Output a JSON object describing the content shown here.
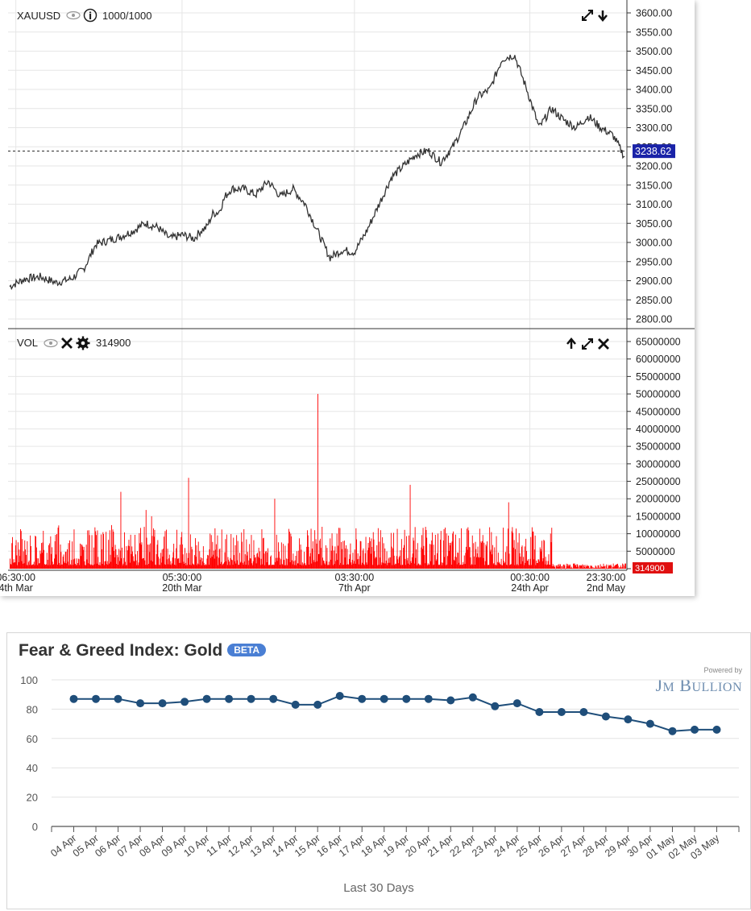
{
  "price_chart": {
    "symbol": "XAUUSD",
    "bars_label": "1000/1000",
    "last_price_label": "3238.62",
    "colors": {
      "line": "#333333",
      "price_tag": "#1a23a8",
      "volume": "#ff0000",
      "volume_tag": "#e01010"
    }
  },
  "volume_chart": {
    "label": "VOL",
    "value": "314900",
    "volume_tag": "314900"
  },
  "fear_greed": {
    "title": "Fear & Greed Index: Gold",
    "badge": "BETA",
    "powered_by": "Powered by",
    "brand": "JM BULLION",
    "x_title": "Last 30 Days",
    "colors": {
      "line": "#1f4e7a",
      "point": "#1f4e7a",
      "grid": "#e3e3e3",
      "badge": "#4a7fd4"
    }
  },
  "chart_data": [
    {
      "type": "line",
      "series": [
        {
          "name": "XAUUSD",
          "x_index": [
            0,
            25,
            50,
            75,
            100,
            120,
            140,
            160,
            180,
            200,
            220,
            240,
            260,
            280,
            300,
            310,
            320,
            330,
            340,
            350,
            360,
            380,
            400,
            420,
            440,
            460,
            480,
            500,
            520,
            540,
            560,
            580,
            600,
            620,
            640,
            660,
            680,
            700,
            720,
            740,
            760,
            780,
            800,
            820,
            840,
            860,
            880,
            900,
            920,
            940,
            960,
            980,
            1000
          ],
          "values": [
            2885,
            2905,
            2910,
            2895,
            2905,
            2930,
            2995,
            3005,
            3015,
            3030,
            3050,
            3040,
            3010,
            3020,
            3010,
            3030,
            3040,
            3075,
            3080,
            3120,
            3140,
            3140,
            3125,
            3160,
            3120,
            3140,
            3100,
            3030,
            2960,
            2980,
            2975,
            3030,
            3100,
            3170,
            3200,
            3230,
            3240,
            3210,
            3250,
            3310,
            3380,
            3400,
            3480,
            3490,
            3400,
            3300,
            3350,
            3320,
            3300,
            3330,
            3300,
            3280,
            3220
          ]
        }
      ],
      "y_ticks": [
        "2800.00",
        "2850.00",
        "2900.00",
        "2950.00",
        "3000.00",
        "3050.00",
        "3100.00",
        "3150.00",
        "3200.00",
        "3250.00",
        "3300.00",
        "3350.00",
        "3400.00",
        "3450.00",
        "3500.00",
        "3550.00",
        "3600.00"
      ],
      "ylim": [
        2800,
        3600
      ],
      "x_tick_labels": [
        {
          "time": "06:30:00",
          "date": "4th Mar"
        },
        {
          "time": "05:30:00",
          "date": "20th Mar"
        },
        {
          "time": "03:30:00",
          "date": "7th Apr"
        },
        {
          "time": "00:30:00",
          "date": "24th Apr"
        },
        {
          "time": "23:30:00",
          "date": "2nd May"
        }
      ],
      "last_value": 3238.62
    },
    {
      "type": "bar",
      "series": [
        {
          "name": "VOL"
        }
      ],
      "spikes": [
        {
          "x_index": 500,
          "value": 50000000
        },
        {
          "x_index": 290,
          "value": 26000000
        },
        {
          "x_index": 650,
          "value": 24000000
        },
        {
          "x_index": 180,
          "value": 22000000
        },
        {
          "x_index": 810,
          "value": 19000000
        },
        {
          "x_index": 430,
          "value": 20000000
        }
      ],
      "baseline_range": [
        1000000,
        12000000
      ],
      "tail_after_index": 880,
      "tail_range": [
        0,
        1500000
      ],
      "y_ticks": [
        "0",
        "5000000",
        "10000000",
        "15000000",
        "20000000",
        "25000000",
        "30000000",
        "35000000",
        "40000000",
        "45000000",
        "50000000",
        "55000000",
        "60000000",
        "65000000"
      ],
      "ylim": [
        0,
        65000000
      ],
      "last_value": 314900
    },
    {
      "type": "line",
      "title": "Fear & Greed Index: Gold",
      "xlabel": "Last 30 Days",
      "categories": [
        "04 Apr",
        "05 Apr",
        "06 Apr",
        "07 Apr",
        "08 Apr",
        "09 Apr",
        "10 Apr",
        "11 Apr",
        "12 Apr",
        "13 Apr",
        "14 Apr",
        "15 Apr",
        "16 Apr",
        "17 Apr",
        "18 Apr",
        "19 Apr",
        "20 Apr",
        "21 Apr",
        "22 Apr",
        "23 Apr",
        "24 Apr",
        "25 Apr",
        "26 Apr",
        "27 Apr",
        "28 Apr",
        "29 Apr",
        "30 Apr",
        "01 May",
        "02 May",
        "03 May"
      ],
      "series": [
        {
          "values": [
            87,
            87,
            87,
            84,
            84,
            85,
            87,
            87,
            87,
            87,
            83,
            83,
            89,
            87,
            87,
            87,
            87,
            86,
            88,
            82,
            84,
            78,
            78,
            78,
            75,
            73,
            70,
            65,
            66,
            66
          ]
        }
      ],
      "y_ticks": [
        "0",
        "20",
        "40",
        "60",
        "80",
        "100"
      ],
      "ylim": [
        0,
        100
      ],
      "grid": true
    }
  ]
}
